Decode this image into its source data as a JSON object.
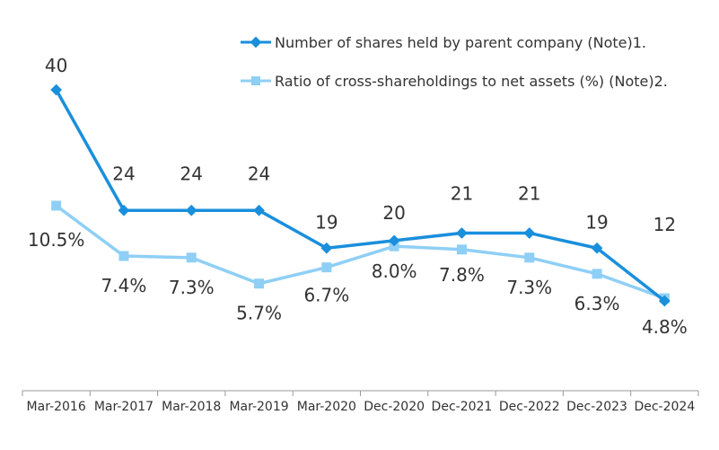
{
  "chart_data": {
    "type": "line",
    "title": "",
    "xlabel": "",
    "ylabel": "",
    "categories": [
      "Mar-2016",
      "Mar-2017",
      "Mar-2018",
      "Mar-2019",
      "Mar-2020",
      "Dec-2020",
      "Dec-2021",
      "Dec-2022",
      "Dec-2023",
      "Dec-2024"
    ],
    "series": [
      {
        "name": "Number of shares held by parent company (Note)1.",
        "values": [
          40,
          24,
          24,
          24,
          19,
          20,
          21,
          21,
          19,
          12
        ],
        "labels": [
          "40",
          "24",
          "24",
          "24",
          "19",
          "20",
          "21",
          "21",
          "19",
          "12"
        ],
        "color": "#1a8fdc",
        "marker": "diamond"
      },
      {
        "name": "Ratio of cross-shareholdings to net assets (%) (Note)2.",
        "values": [
          10.5,
          7.4,
          7.3,
          5.7,
          6.7,
          8.0,
          7.8,
          7.3,
          6.3,
          4.8
        ],
        "labels": [
          "10.5%",
          "7.4%",
          "7.3%",
          "5.7%",
          "6.7%",
          "8.0%",
          "7.8%",
          "7.3%",
          "6.3%",
          "4.8%"
        ],
        "color": "#8fcff5",
        "marker": "square"
      }
    ],
    "legend": "top-right",
    "grid": false
  }
}
